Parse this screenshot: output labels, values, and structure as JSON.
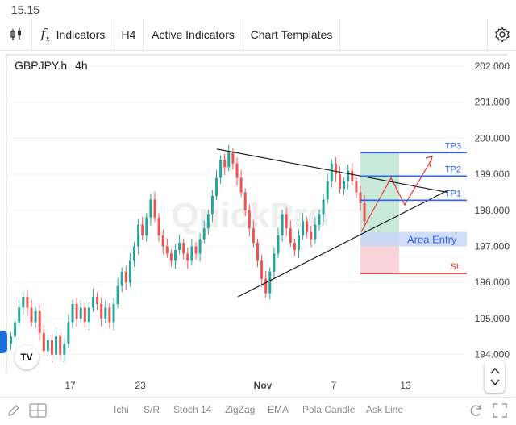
{
  "status": {
    "time": "15.15"
  },
  "toolbar": {
    "indicators_label": "Indicators",
    "timeframe_label": "H4",
    "active_indicators_label": "Active Indicators",
    "chart_templates_label": "Chart Templates"
  },
  "chart": {
    "symbol": "GBPJPY.h",
    "interval": "4h",
    "watermark": "QuickPro",
    "logo_text": "TV",
    "colors": {
      "up": "#26a69a",
      "down": "#ef5350",
      "tp_line": "#2962ff",
      "sl_line": "#e53935",
      "profit_zone": "#b7e3cf",
      "loss_zone": "#f8c9cf",
      "entry_zone": "#c9d7f7"
    }
  },
  "chart_data": {
    "type": "candlestick",
    "y_ticks": [
      "202.000",
      "201.000",
      "200.000",
      "199.000",
      "198.000",
      "197.000",
      "196.000",
      "195.000",
      "194.000"
    ],
    "x_ticks": [
      "17",
      "23",
      "Nov",
      "7",
      "13"
    ],
    "levels": [
      {
        "label": "TP3",
        "price": 199.6
      },
      {
        "label": "TP2",
        "price": 198.95
      },
      {
        "label": "TP1",
        "price": 198.28
      },
      {
        "label": "Area Entry",
        "price": 197.2
      },
      {
        "label": "SL",
        "price": 196.25
      }
    ],
    "closes": [
      194.5,
      194.9,
      195.3,
      195.6,
      195.3,
      194.9,
      195.2,
      194.6,
      194.1,
      194.4,
      194.0,
      194.5,
      194.0,
      194.3,
      194.9,
      195.4,
      195.0,
      195.3,
      194.9,
      195.3,
      195.6,
      195.4,
      195.0,
      195.3,
      194.9,
      195.4,
      195.9,
      196.3,
      196.0,
      196.6,
      197.0,
      197.6,
      197.3,
      197.8,
      198.3,
      197.8,
      197.3,
      197.0,
      196.8,
      196.6,
      196.9,
      197.1,
      196.8,
      196.6,
      197.0,
      196.8,
      197.2,
      197.5,
      197.9,
      198.4,
      198.9,
      199.4,
      199.2,
      199.6,
      199.3,
      198.9,
      198.5,
      198.0,
      197.5,
      197.1,
      196.6,
      196.1,
      195.7,
      196.3,
      196.8,
      197.3,
      197.9,
      197.5,
      197.1,
      196.9,
      197.3,
      197.7,
      197.4,
      197.2,
      197.6,
      197.9,
      198.3,
      198.8,
      199.3,
      199.0,
      198.6,
      198.8,
      199.1,
      198.8,
      198.5,
      198.2,
      197.7
    ],
    "watermark_text": "QuickPro"
  },
  "bottombar": {
    "items": [
      "Ichi",
      "S/R",
      "Stoch 14",
      "ZigZag",
      "EMA",
      "Pola Candle",
      "Ask Line"
    ]
  }
}
